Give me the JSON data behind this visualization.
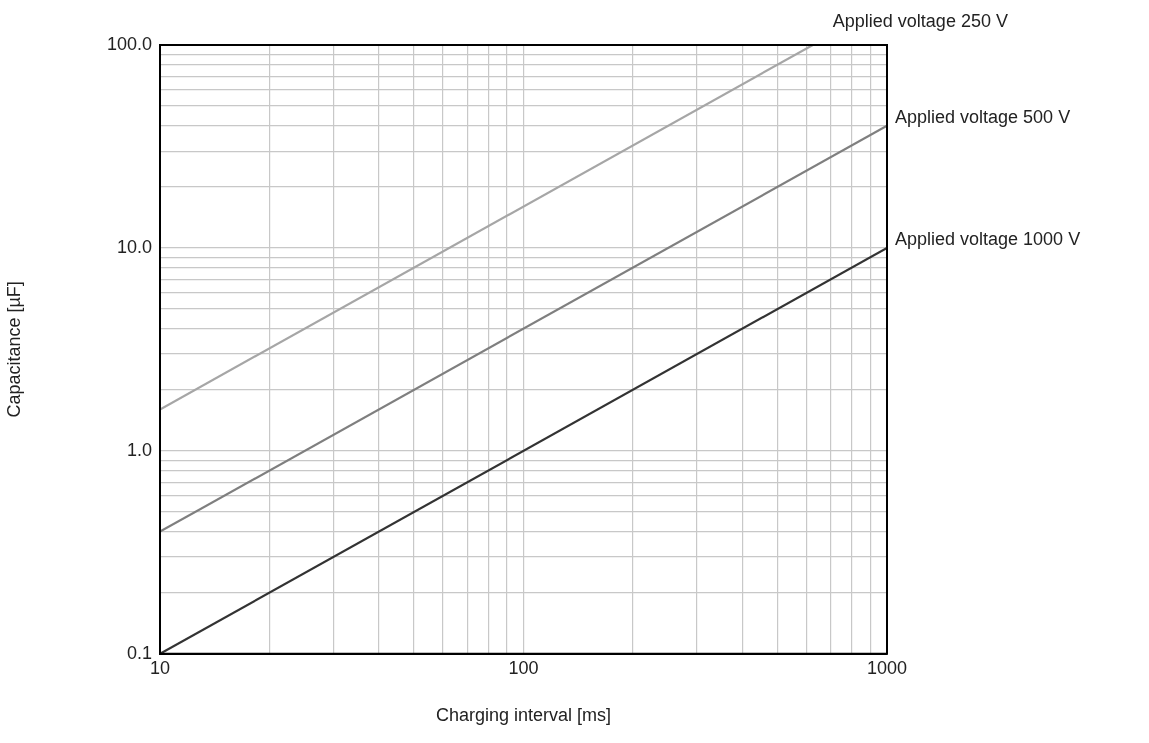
{
  "chart_data": {
    "type": "line",
    "xlabel": "Charging interval [ms]",
    "ylabel": "Capacitance [µF]",
    "log": "xy",
    "grid": true,
    "legend": false,
    "marker": "none",
    "line_style": "solid",
    "xlim": [
      10,
      1000
    ],
    "xticks": [
      10,
      {
        "value": 20,
        "label": null
      },
      {
        "value": 30,
        "label": null
      },
      {
        "value": 40,
        "label": null
      },
      {
        "value": 50,
        "label": null
      },
      {
        "value": 60,
        "label": null
      },
      {
        "value": 70,
        "label": null
      },
      {
        "value": 80,
        "label": null
      },
      {
        "value": 90,
        "label": null
      },
      100,
      {
        "value": 200,
        "label": null
      },
      {
        "value": 300,
        "label": null
      },
      {
        "value": 400,
        "label": null
      },
      {
        "value": 500,
        "label": null
      },
      {
        "value": 600,
        "label": null
      },
      {
        "value": 700,
        "label": null
      },
      {
        "value": 800,
        "label": null
      },
      {
        "value": 900,
        "label": null
      },
      1000
    ],
    "ylim": [
      0.1,
      100
    ],
    "yticks": [
      0.1,
      {
        "value": 0.2,
        "label": null
      },
      {
        "value": 0.3,
        "label": null
      },
      {
        "value": 0.4,
        "label": null
      },
      {
        "value": 0.5,
        "label": null
      },
      {
        "value": 0.6,
        "label": null
      },
      {
        "value": 0.7,
        "label": null
      },
      {
        "value": 0.8,
        "label": null
      },
      {
        "value": 0.9,
        "label": null
      },
      {
        "value": 1,
        "label": "1.0"
      },
      {
        "value": 2,
        "label": null
      },
      {
        "value": 3,
        "label": null
      },
      {
        "value": 4,
        "label": null
      },
      {
        "value": 5,
        "label": null
      },
      {
        "value": 6,
        "label": null
      },
      {
        "value": 7,
        "label": null
      },
      {
        "value": 8,
        "label": null
      },
      {
        "value": 9,
        "label": null
      },
      {
        "value": 10,
        "label": "10.0"
      },
      {
        "value": 20,
        "label": null
      },
      {
        "value": 30,
        "label": null
      },
      {
        "value": 40,
        "label": null
      },
      {
        "value": 50,
        "label": null
      },
      {
        "value": 60,
        "label": null
      },
      {
        "value": 70,
        "label": null
      },
      {
        "value": 80,
        "label": null
      },
      {
        "value": 90,
        "label": null
      },
      {
        "value": 100,
        "label": "100.0"
      }
    ],
    "series": [
      {
        "name": "Applied voltage 250 V",
        "color": "#a6a6a6",
        "x": [
          10,
          625
        ],
        "values": [
          1.6,
          100
        ]
      },
      {
        "name": "Applied voltage 500 V",
        "color": "#7f7f7f",
        "x": [
          10,
          1000
        ],
        "values": [
          0.4,
          40
        ]
      },
      {
        "name": "Applied voltage 1000 V",
        "color": "#333333",
        "x": [
          10,
          1000
        ],
        "values": [
          0.1,
          10
        ]
      }
    ]
  }
}
